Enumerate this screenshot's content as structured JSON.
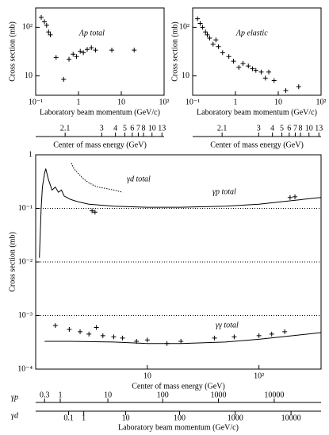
{
  "chart_data": [
    {
      "type": "scatter",
      "title": "Λp total",
      "x_label": "Laboratory beam momentum (GeV/c)",
      "y_label": "Cross section (mb)",
      "log_x": true,
      "log_y": true,
      "xlim": [
        0.1,
        100
      ],
      "ylim": [
        4,
        250
      ],
      "xticks": [
        {
          "value": 0.1,
          "label": "10⁻¹"
        },
        1,
        10,
        {
          "value": 100,
          "label": "10²"
        }
      ],
      "yticks": [
        10,
        {
          "value": 100,
          "label": "10²"
        }
      ],
      "cm_label": "Center of mass energy (GeV)",
      "cm_ticks": [
        2.1,
        3,
        4,
        5,
        6,
        7,
        8,
        10,
        13
      ],
      "color": "#000000",
      "x": [
        0.135,
        0.16,
        0.18,
        0.2,
        0.22,
        0.3,
        0.45,
        0.6,
        0.75,
        0.9,
        1.1,
        1.3,
        1.6,
        2,
        2.5,
        6,
        20
      ],
      "values": [
        160,
        130,
        110,
        80,
        70,
        24,
        8.5,
        22,
        28,
        25,
        32,
        30,
        35,
        38,
        34,
        34,
        34
      ]
    },
    {
      "type": "scatter",
      "title": "Λp elastic",
      "x_label": "Laboratory beam momentum (GeV/c)",
      "y_label": "Cross section (mb)",
      "log_x": true,
      "log_y": true,
      "xlim": [
        0.1,
        100
      ],
      "ylim": [
        4,
        250
      ],
      "xticks": [
        {
          "value": 0.1,
          "label": "10⁻¹"
        },
        1,
        10,
        {
          "value": 100,
          "label": "10²"
        }
      ],
      "yticks": [
        10,
        {
          "value": 100,
          "label": "10²"
        }
      ],
      "cm_label": "Center of mass energy (GeV)",
      "cm_ticks": [
        2.1,
        3,
        4,
        5,
        6,
        7,
        8,
        10,
        13
      ],
      "color": "#000000",
      "x": [
        0.13,
        0.15,
        0.17,
        0.2,
        0.22,
        0.25,
        0.3,
        0.35,
        0.4,
        0.5,
        0.7,
        0.9,
        1.2,
        1.5,
        2,
        2.5,
        3,
        4,
        5,
        6,
        8,
        15,
        30
      ],
      "values": [
        150,
        120,
        100,
        80,
        70,
        60,
        45,
        55,
        40,
        30,
        25,
        20,
        15,
        18,
        16,
        14,
        13,
        12,
        9,
        12,
        8,
        5,
        6
      ]
    },
    {
      "type": "scatter",
      "x_label": "Center of mass energy (GeV)",
      "y_label": "Cross section (mb)",
      "log_x": true,
      "log_y": true,
      "xlim": [
        1,
        360
      ],
      "ylim": [
        0.0001,
        1
      ],
      "grid": true,
      "xticks": [
        10,
        {
          "value": 100,
          "label": "10²"
        }
      ],
      "yticks": [
        1,
        {
          "value": 0.1,
          "label": "10⁻¹"
        },
        {
          "value": 0.01,
          "label": "10⁻²"
        },
        {
          "value": 0.001,
          "label": "10⁻³"
        },
        {
          "value": 0.0001,
          "label": "10⁻⁴"
        }
      ],
      "lab_label": "Laboratory beam momentum (GeV/c)",
      "lab_axes": [
        {
          "name": "γp",
          "ticks": [
            0.3,
            1,
            10,
            100,
            1000,
            10000
          ]
        },
        {
          "name": "γd",
          "ticks": [
            0.1,
            1,
            10,
            100,
            1000,
            10000
          ]
        }
      ],
      "series": [
        {
          "name": "γd total",
          "type": "line",
          "dash": true,
          "color": "#000000",
          "x": [
            2.09,
            2.2,
            2.4,
            2.6,
            2.8,
            3,
            3.3,
            3.6,
            4,
            4.5,
            5,
            5.5,
            6
          ],
          "values": [
            0.7,
            0.55,
            0.45,
            0.38,
            0.33,
            0.3,
            0.27,
            0.25,
            0.24,
            0.23,
            0.22,
            0.21,
            0.2
          ]
        },
        {
          "name": "γp total",
          "type": "line",
          "color": "#000000",
          "x": [
            1.08,
            1.12,
            1.15,
            1.2,
            1.23,
            1.3,
            1.4,
            1.5,
            1.6,
            1.7,
            1.8,
            1.9,
            2.0,
            2.2,
            2.5,
            3,
            5,
            10,
            20,
            50,
            100,
            200,
            360
          ],
          "values": [
            0.012,
            0.1,
            0.25,
            0.45,
            0.55,
            0.35,
            0.22,
            0.25,
            0.2,
            0.22,
            0.17,
            0.16,
            0.15,
            0.14,
            0.13,
            0.12,
            0.11,
            0.105,
            0.105,
            0.11,
            0.12,
            0.14,
            0.16
          ]
        },
        {
          "type": "scatter",
          "color": "#000000",
          "x": [
            3.2,
            3.4,
            190,
            210
          ],
          "values": [
            0.09,
            0.085,
            0.16,
            0.165
          ]
        },
        {
          "name": "γγ total",
          "type": "line",
          "color": "#000000",
          "x": [
            1.2,
            2,
            5,
            10,
            20,
            50,
            100,
            200,
            360
          ],
          "values": [
            0.00033,
            0.00033,
            0.00032,
            0.0003,
            0.0003,
            0.00032,
            0.00036,
            0.00042,
            0.00048
          ]
        },
        {
          "type": "scatter",
          "color": "#000000",
          "x": [
            1.5,
            2,
            2.5,
            3,
            3.5,
            4,
            5,
            6,
            8,
            10,
            15,
            20,
            40,
            60,
            100,
            130,
            170
          ],
          "values": [
            0.00065,
            0.00055,
            0.0005,
            0.00045,
            0.0006,
            0.00042,
            0.0004,
            0.00038,
            0.00033,
            0.00035,
            0.0003,
            0.00033,
            0.00038,
            0.0004,
            0.00042,
            0.00045,
            0.0005
          ]
        }
      ]
    }
  ]
}
